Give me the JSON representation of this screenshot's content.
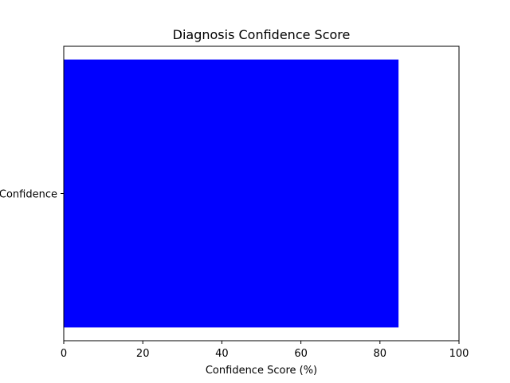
{
  "chart_data": {
    "type": "bar",
    "orientation": "horizontal",
    "title": "Diagnosis Confidence Score",
    "xlabel": "Confidence Score (%)",
    "ylabel": "",
    "categories": [
      "Confidence"
    ],
    "values": [
      84.7
    ],
    "xlim": [
      0,
      100
    ],
    "xticks": [
      0,
      20,
      40,
      60,
      80,
      100
    ],
    "bar_color": "#0000ff",
    "grid": false,
    "legend": "none"
  }
}
